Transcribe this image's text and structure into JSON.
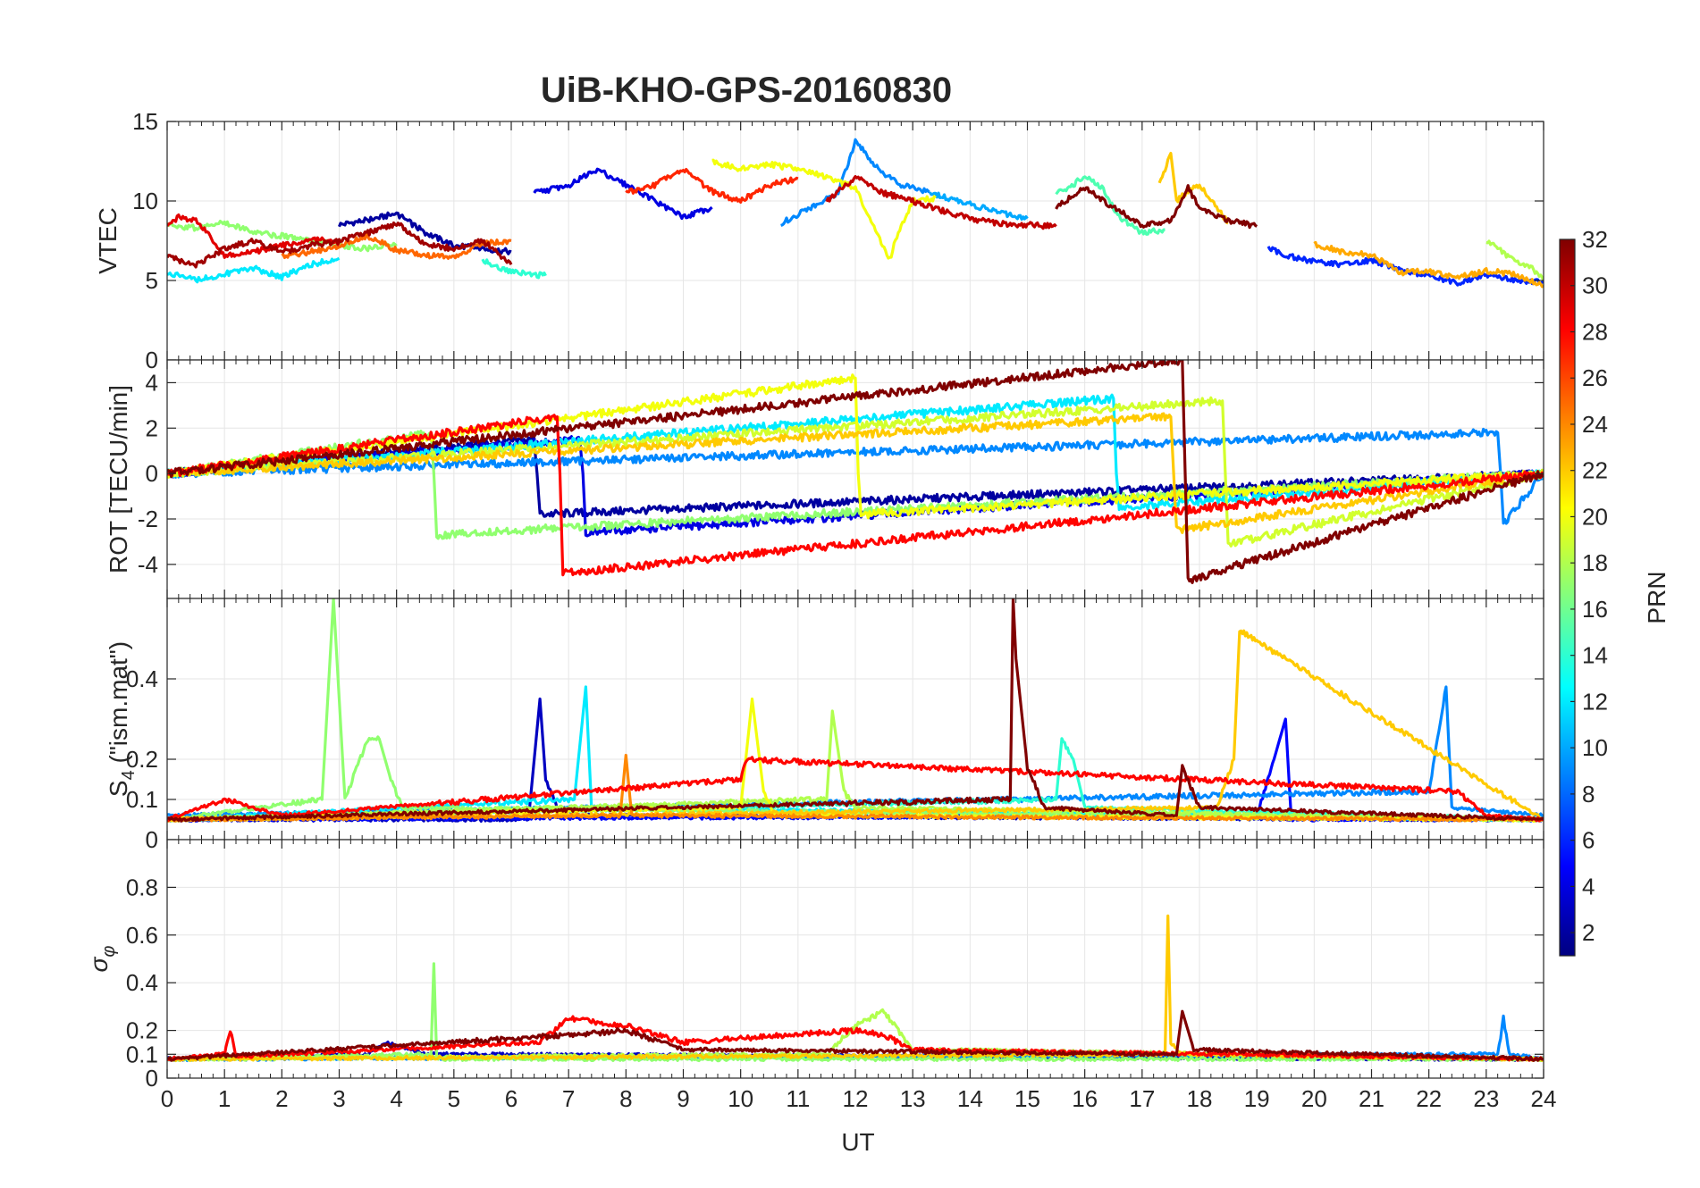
{
  "figure": {
    "title": "UiB-KHO-GPS-20160830",
    "xlabel": "UT"
  },
  "colorbar": {
    "label": "PRN",
    "range": [
      1,
      32
    ],
    "ticks": [
      2,
      4,
      6,
      8,
      10,
      12,
      14,
      16,
      18,
      20,
      22,
      24,
      26,
      28,
      30,
      32
    ],
    "colormap": "jet",
    "colors": [
      "#00008f",
      "#0000ff",
      "#00ffff",
      "#ffff00",
      "#ff0000",
      "#800000"
    ]
  },
  "chart_data": [
    {
      "type": "line",
      "panel": "vtec",
      "ylabel": "VTEC",
      "xlim": [
        0,
        24
      ],
      "ylim": [
        0,
        15
      ],
      "xticks": [
        0,
        1,
        2,
        3,
        4,
        5,
        6,
        7,
        8,
        9,
        10,
        11,
        12,
        13,
        14,
        15,
        16,
        17,
        18,
        19,
        20,
        21,
        22,
        23,
        24
      ],
      "yticks": [
        0,
        5,
        10,
        15
      ],
      "grid": true,
      "series": [
        {
          "prn": 2,
          "x": [
            3.0,
            3.5,
            4.0,
            4.5,
            5.0,
            5.5,
            6.0
          ],
          "y": [
            8.5,
            8.8,
            9.2,
            8.0,
            7.2,
            7.0,
            6.8
          ]
        },
        {
          "prn": 4,
          "x": [
            6.4,
            7.0,
            7.5,
            8.0,
            8.5,
            9.0,
            9.5
          ],
          "y": [
            10.5,
            11.0,
            12.0,
            11.0,
            10.0,
            9.0,
            9.6
          ]
        },
        {
          "prn": 6,
          "x": [
            19.2,
            19.6,
            20.0,
            20.5,
            21.0,
            21.5,
            22.0,
            22.5,
            23.0,
            23.5,
            24.0
          ],
          "y": [
            7.0,
            6.5,
            6.2,
            6.0,
            6.3,
            5.7,
            5.3,
            4.8,
            5.4,
            5.0,
            4.9
          ]
        },
        {
          "prn": 9,
          "x": [
            10.7,
            11.2,
            11.7,
            12.0,
            12.4,
            12.8,
            13.3
          ],
          "y": [
            8.6,
            9.5,
            10.5,
            13.8,
            12.0,
            11.0,
            10.6
          ]
        },
        {
          "prn": 10,
          "x": [
            13.3,
            13.8,
            14.2,
            14.6,
            15.0
          ],
          "y": [
            10.5,
            10.0,
            9.6,
            9.2,
            8.9
          ]
        },
        {
          "prn": 12,
          "x": [
            0.0,
            0.5,
            1.0,
            1.5,
            2.0,
            2.5,
            3.0
          ],
          "y": [
            5.5,
            5.0,
            5.4,
            5.8,
            5.2,
            6.0,
            6.4
          ]
        },
        {
          "prn": 14,
          "x": [
            5.5,
            5.8,
            6.0,
            6.3,
            6.6
          ],
          "y": [
            6.3,
            5.8,
            5.6,
            5.4,
            5.3
          ]
        },
        {
          "prn": 15,
          "x": [
            15.5,
            15.8,
            16.0,
            16.3,
            16.6,
            17.0,
            17.4
          ],
          "y": [
            10.5,
            11.0,
            11.6,
            10.8,
            9.0,
            8.0,
            8.2
          ]
        },
        {
          "prn": 17,
          "x": [
            0.0,
            0.5,
            1.0,
            1.5,
            2.0,
            2.5,
            3.0,
            3.5,
            4.0
          ],
          "y": [
            8.5,
            8.3,
            8.7,
            8.0,
            7.8,
            7.5,
            7.2,
            7.0,
            7.3
          ]
        },
        {
          "prn": 18,
          "x": [
            23.0,
            23.4,
            23.8,
            24.0
          ],
          "y": [
            7.5,
            6.5,
            5.8,
            5.0
          ]
        },
        {
          "prn": 20,
          "x": [
            9.5,
            10.0,
            10.5,
            11.0,
            11.5,
            12.0,
            12.5,
            12.6,
            12.7,
            13.0,
            13.4
          ],
          "y": [
            12.5,
            12.0,
            12.3,
            12.0,
            11.5,
            10.8,
            7.0,
            6.3,
            7.5,
            10.0,
            10.2
          ]
        },
        {
          "prn": 22,
          "x": [
            17.3,
            17.5,
            17.6,
            17.8,
            18.0,
            18.5
          ],
          "y": [
            11.0,
            13.0,
            10.0,
            10.6,
            11.0,
            8.6
          ]
        },
        {
          "prn": 23,
          "x": [
            20.0,
            20.5,
            21.0,
            21.5,
            22.0,
            22.5,
            23.0,
            23.5,
            24.0
          ],
          "y": [
            7.3,
            6.8,
            6.6,
            5.5,
            5.6,
            5.2,
            5.6,
            5.4,
            4.7
          ]
        },
        {
          "prn": 25,
          "x": [
            2.0,
            2.5,
            3.0,
            3.5,
            4.0,
            4.5,
            5.0,
            5.5,
            6.0
          ],
          "y": [
            6.5,
            6.8,
            7.2,
            7.8,
            6.9,
            6.6,
            6.5,
            7.3,
            7.5
          ]
        },
        {
          "prn": 27,
          "x": [
            8.0,
            8.5,
            9.0,
            9.5,
            10.0,
            10.5,
            11.0
          ],
          "y": [
            10.5,
            11.0,
            12.0,
            10.6,
            10.0,
            11.0,
            11.4
          ]
        },
        {
          "prn": 29,
          "x": [
            0.0,
            0.2,
            0.5,
            0.8,
            1.0,
            1.5,
            2.0,
            2.5,
            3.0
          ],
          "y": [
            8.5,
            9.0,
            8.8,
            7.5,
            6.5,
            6.8,
            7.2,
            7.6,
            7.4
          ]
        },
        {
          "prn": 30,
          "x": [
            11.5,
            12.0,
            12.5,
            13.0,
            13.5,
            14.0,
            14.5,
            15.0,
            15.5
          ],
          "y": [
            10.0,
            11.5,
            10.5,
            10.0,
            9.4,
            8.9,
            8.6,
            8.5,
            8.4
          ]
        },
        {
          "prn": 31,
          "x": [
            0.0,
            0.5,
            1.0,
            1.5,
            2.0,
            2.5,
            3.0,
            3.5,
            4.0,
            4.5,
            5.0,
            5.5,
            6.0
          ],
          "y": [
            6.5,
            6.0,
            7.0,
            7.5,
            6.8,
            7.2,
            7.5,
            8.0,
            8.6,
            7.3,
            7.0,
            7.5,
            6.0
          ]
        },
        {
          "prn": 32,
          "x": [
            15.5,
            16.0,
            16.5,
            17.0,
            17.5,
            17.8,
            18.0,
            18.5,
            19.0
          ],
          "y": [
            9.6,
            10.8,
            9.6,
            8.5,
            8.8,
            10.8,
            9.6,
            8.8,
            8.4
          ]
        }
      ]
    },
    {
      "type": "line",
      "panel": "rot",
      "ylabel": "ROT [TECU/min]",
      "xlim": [
        0,
        24
      ],
      "ylim": [
        -5.5,
        5
      ],
      "xticks": [
        0,
        1,
        2,
        3,
        4,
        5,
        6,
        7,
        8,
        9,
        10,
        11,
        12,
        13,
        14,
        15,
        16,
        17,
        18,
        19,
        20,
        21,
        22,
        23,
        24
      ],
      "yticks": [
        -4,
        -2,
        0,
        2,
        4
      ],
      "grid": true,
      "series": [
        {
          "prn": 2,
          "x": [
            0.0,
            6.4,
            6.45,
            6.5,
            24.0
          ],
          "y": [
            0.0,
            1.5,
            0.0,
            -1.8,
            0.0
          ]
        },
        {
          "prn": 4,
          "x": [
            0.0,
            7.2,
            7.25,
            7.3,
            24.0
          ],
          "y": [
            0.0,
            1.5,
            0.0,
            -2.6,
            0.0
          ]
        },
        {
          "prn": 9,
          "x": [
            0.0,
            23.2,
            23.25,
            23.3,
            24.0
          ],
          "y": [
            0.0,
            1.8,
            0.0,
            -2.2,
            0.0
          ]
        },
        {
          "prn": 12,
          "x": [
            0.0,
            16.5,
            16.55,
            16.6,
            24.0
          ],
          "y": [
            0.0,
            3.3,
            0.0,
            -1.5,
            0.0
          ]
        },
        {
          "prn": 17,
          "x": [
            0.0,
            4.6,
            4.65,
            4.7,
            24.0
          ],
          "y": [
            0.0,
            1.8,
            0.0,
            -2.7,
            0.0
          ]
        },
        {
          "prn": 19,
          "x": [
            0.0,
            18.4,
            18.45,
            18.5,
            24.0
          ],
          "y": [
            0.0,
            3.2,
            0.0,
            -3.1,
            0.0
          ]
        },
        {
          "prn": 20,
          "x": [
            0.0,
            12.0,
            12.05,
            12.1,
            24.0
          ],
          "y": [
            0.0,
            4.2,
            0.0,
            -1.8,
            0.0
          ]
        },
        {
          "prn": 22,
          "x": [
            0.0,
            17.5,
            17.55,
            17.6,
            24.0
          ],
          "y": [
            0.0,
            2.5,
            0.0,
            -2.5,
            0.0
          ]
        },
        {
          "prn": 28,
          "x": [
            0.0,
            6.8,
            6.85,
            6.9,
            24.0
          ],
          "y": [
            0.0,
            2.5,
            0.0,
            -4.4,
            0.0
          ]
        },
        {
          "prn": 32,
          "x": [
            0.0,
            17.7,
            17.75,
            17.8,
            24.0
          ],
          "y": [
            0.0,
            5.0,
            0.0,
            -4.7,
            0.0
          ]
        }
      ]
    },
    {
      "type": "line",
      "panel": "s4",
      "ylabel": "S4 (\"ism.mat\")",
      "ylabel_main": "S",
      "ylabel_sub": "4",
      "ylabel_rest": " (\"ism.mat\")",
      "xlim": [
        0,
        24
      ],
      "ylim": [
        0,
        0.6
      ],
      "xticks": [
        0,
        1,
        2,
        3,
        4,
        5,
        6,
        7,
        8,
        9,
        10,
        11,
        12,
        13,
        14,
        15,
        16,
        17,
        18,
        19,
        20,
        21,
        22,
        23,
        24
      ],
      "yticks": [
        0,
        0.1,
        0.2,
        0.4
      ],
      "ytick_labels": [
        "0",
        "0.1",
        "0.2",
        "0.4"
      ],
      "grid": true,
      "series": [
        {
          "prn": 3,
          "x": [
            0.0,
            6.3,
            6.5,
            6.6,
            6.8,
            7.2,
            24.0
          ],
          "y": [
            0.05,
            0.05,
            0.35,
            0.15,
            0.08,
            0.06,
            0.05
          ]
        },
        {
          "prn": 5,
          "x": [
            0.0,
            19.0,
            19.3,
            19.5,
            19.6,
            24.0
          ],
          "y": [
            0.05,
            0.06,
            0.2,
            0.3,
            0.05,
            0.05
          ]
        },
        {
          "prn": 9,
          "x": [
            0.0,
            22.0,
            22.3,
            22.4,
            24.0
          ],
          "y": [
            0.06,
            0.12,
            0.38,
            0.08,
            0.06
          ]
        },
        {
          "prn": 12,
          "x": [
            0.0,
            7.1,
            7.3,
            7.4,
            24.0
          ],
          "y": [
            0.05,
            0.1,
            0.38,
            0.08,
            0.05
          ]
        },
        {
          "prn": 14,
          "x": [
            0.0,
            15.5,
            15.6,
            15.8,
            16.0,
            24.0
          ],
          "y": [
            0.05,
            0.1,
            0.25,
            0.2,
            0.08,
            0.05
          ]
        },
        {
          "prn": 17,
          "x": [
            0.0,
            2.7,
            2.9,
            3.1,
            3.5,
            3.7,
            3.9,
            4.1,
            24.0
          ],
          "y": [
            0.05,
            0.1,
            0.6,
            0.1,
            0.25,
            0.25,
            0.15,
            0.08,
            0.05
          ]
        },
        {
          "prn": 18,
          "x": [
            0.0,
            11.5,
            11.6,
            11.8,
            12.0,
            24.0
          ],
          "y": [
            0.05,
            0.1,
            0.32,
            0.12,
            0.08,
            0.05
          ]
        },
        {
          "prn": 20,
          "x": [
            0.0,
            10.0,
            10.2,
            10.4,
            10.6,
            24.0
          ],
          "y": [
            0.05,
            0.08,
            0.35,
            0.12,
            0.06,
            0.05
          ]
        },
        {
          "prn": 22,
          "x": [
            0.0,
            18.3,
            18.6,
            18.7,
            24.0
          ],
          "y": [
            0.05,
            0.08,
            0.2,
            0.52,
            0.05
          ]
        },
        {
          "prn": 24,
          "x": [
            0.0,
            7.9,
            8.0,
            8.1,
            24.0
          ],
          "y": [
            0.05,
            0.06,
            0.21,
            0.06,
            0.05
          ]
        },
        {
          "prn": 28,
          "x": [
            0.0,
            1.0,
            2.0,
            10.0,
            10.1,
            22.5,
            23.0,
            24.0
          ],
          "y": [
            0.05,
            0.1,
            0.06,
            0.15,
            0.2,
            0.12,
            0.06,
            0.05
          ]
        },
        {
          "prn": 32,
          "x": [
            0.0,
            14.7,
            14.75,
            14.8,
            15.0,
            15.3,
            17.6,
            17.7,
            18.0,
            24.0
          ],
          "y": [
            0.05,
            0.1,
            0.6,
            0.45,
            0.18,
            0.08,
            0.06,
            0.18,
            0.08,
            0.05
          ]
        }
      ]
    },
    {
      "type": "line",
      "panel": "sigma_phi",
      "ylabel": "σφ",
      "ylabel_main": "σ",
      "ylabel_sub": "φ",
      "xlim": [
        0,
        24
      ],
      "ylim": [
        0,
        1
      ],
      "xticks": [
        0,
        1,
        2,
        3,
        4,
        5,
        6,
        7,
        8,
        9,
        10,
        11,
        12,
        13,
        14,
        15,
        16,
        17,
        18,
        19,
        20,
        21,
        22,
        23,
        24
      ],
      "yticks": [
        0,
        0.1,
        0.2,
        0.4,
        0.6,
        0.8
      ],
      "ytick_labels": [
        "0",
        "0.1",
        "0.2",
        "0.4",
        "0.6",
        "0.8"
      ],
      "grid": true,
      "series": [
        {
          "prn": 3,
          "x": [
            0.0,
            3.5,
            3.8,
            4.5,
            24.0
          ],
          "y": [
            0.08,
            0.1,
            0.15,
            0.1,
            0.08
          ]
        },
        {
          "prn": 9,
          "x": [
            0.0,
            23.2,
            23.3,
            23.4,
            24.0
          ],
          "y": [
            0.08,
            0.1,
            0.25,
            0.1,
            0.08
          ]
        },
        {
          "prn": 17,
          "x": [
            0.0,
            4.6,
            4.65,
            4.7,
            24.0
          ],
          "y": [
            0.08,
            0.1,
            0.48,
            0.08,
            0.08
          ]
        },
        {
          "prn": 18,
          "x": [
            0.0,
            11.5,
            12.0,
            12.5,
            13.0,
            24.0
          ],
          "y": [
            0.08,
            0.1,
            0.22,
            0.28,
            0.12,
            0.08
          ]
        },
        {
          "prn": 22,
          "x": [
            0.0,
            17.4,
            17.45,
            17.5,
            17.7,
            24.0
          ],
          "y": [
            0.08,
            0.1,
            0.68,
            0.15,
            0.1,
            0.08
          ]
        },
        {
          "prn": 28,
          "x": [
            0.0,
            1.0,
            1.1,
            1.2,
            6.5,
            7.0,
            8.0,
            9.0,
            12.0,
            12.5,
            13.0,
            24.0
          ],
          "y": [
            0.08,
            0.1,
            0.2,
            0.09,
            0.15,
            0.25,
            0.22,
            0.15,
            0.2,
            0.18,
            0.12,
            0.08
          ]
        },
        {
          "prn": 32,
          "x": [
            0.0,
            7.0,
            8.0,
            9.0,
            17.6,
            17.7,
            17.9,
            24.0
          ],
          "y": [
            0.08,
            0.18,
            0.2,
            0.12,
            0.1,
            0.28,
            0.12,
            0.08
          ]
        }
      ]
    }
  ]
}
